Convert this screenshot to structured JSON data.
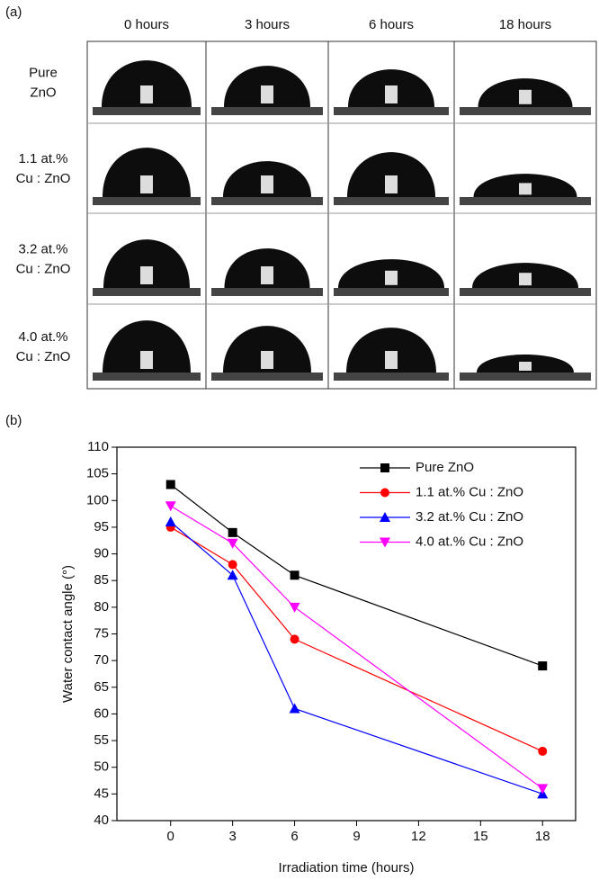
{
  "panel_a": {
    "label": "(a)",
    "columns": [
      "0 hours",
      "3 hours",
      "6 hours",
      "18 hours"
    ],
    "rows": [
      [
        "Pure",
        "ZnO"
      ],
      [
        "1.1 at.%",
        "Cu : ZnO"
      ],
      [
        "3.2 at.%",
        "Cu : ZnO"
      ],
      [
        "4.0 at.%",
        "Cu : ZnO"
      ]
    ]
  },
  "chart_data": {
    "type": "line",
    "panel_label": "(b)",
    "x_label": "Irradiation time (hours)",
    "y_label": "Water contact angle (°)",
    "x": [
      0,
      3,
      6,
      18
    ],
    "series": [
      {
        "name": "Pure ZnO",
        "color": "#000000",
        "marker": "square",
        "values": [
          103,
          94,
          86,
          69
        ]
      },
      {
        "name": "1.1 at.% Cu : ZnO",
        "color": "#ff0000",
        "marker": "circle",
        "values": [
          95,
          88,
          74,
          53
        ]
      },
      {
        "name": "3.2 at.% Cu : ZnO",
        "color": "#0000ff",
        "marker": "triangle-up",
        "values": [
          96,
          86,
          61,
          45
        ]
      },
      {
        "name": "4.0 at.% Cu : ZnO",
        "color": "#ff00ff",
        "marker": "triangle-down",
        "values": [
          99,
          92,
          80,
          46
        ]
      }
    ],
    "xlim": [
      -2.6,
      19.6
    ],
    "xticks": [
      0,
      3,
      6,
      9,
      12,
      15,
      18
    ],
    "ylim": [
      40,
      110
    ],
    "yticks": [
      40,
      45,
      50,
      55,
      60,
      65,
      70,
      75,
      80,
      85,
      90,
      95,
      100,
      105,
      110
    ],
    "legend": "upper right"
  }
}
